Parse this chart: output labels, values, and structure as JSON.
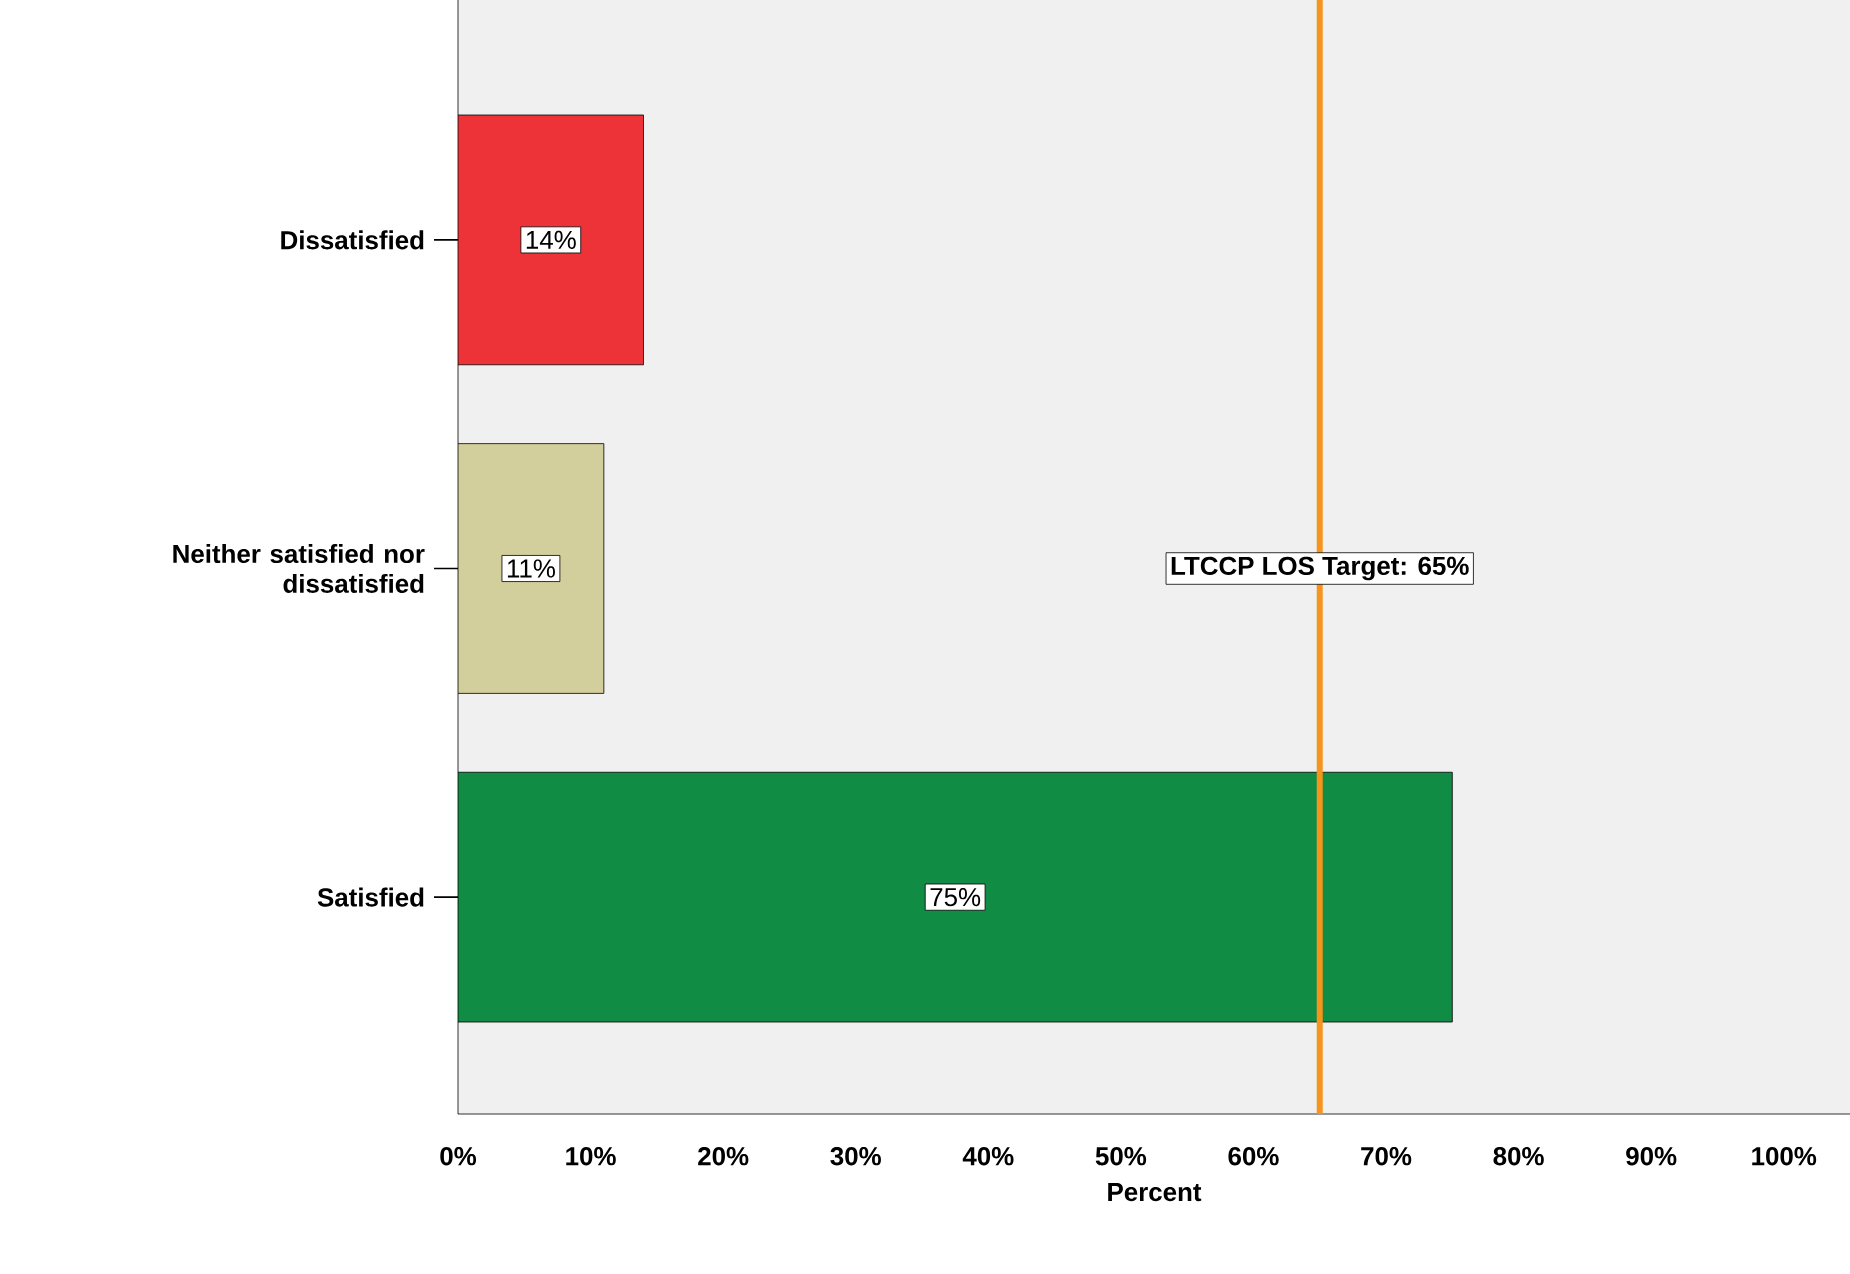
{
  "chart_data": {
    "type": "bar",
    "orientation": "horizontal",
    "xlabel": "Percent",
    "categories": [
      "Dissatisfied",
      "Neither satisfied nor dissatisfied",
      "Satisfied"
    ],
    "values": [
      14,
      11,
      75
    ],
    "colors": [
      "#ee3338",
      "#d3cf9c",
      "#108c44"
    ],
    "value_labels": [
      "14%",
      "11%",
      "75%"
    ],
    "xlim": [
      0,
      105
    ],
    "xticks": [
      {
        "value": 0,
        "label": "0%"
      },
      {
        "value": 10,
        "label": "10%"
      },
      {
        "value": 20,
        "label": "20%"
      },
      {
        "value": 30,
        "label": "30%"
      },
      {
        "value": 40,
        "label": "40%"
      },
      {
        "value": 50,
        "label": "50%"
      },
      {
        "value": 60,
        "label": "60%"
      },
      {
        "value": 70,
        "label": "70%"
      },
      {
        "value": 80,
        "label": "80%"
      },
      {
        "value": 90,
        "label": "90%"
      },
      {
        "value": 100,
        "label": "100%"
      }
    ],
    "ref_lines": [
      {
        "axis": "x",
        "value": 65,
        "label": "LTCCP LOS Target: 65%",
        "color": "#f7941d"
      }
    ],
    "grid": false
  }
}
